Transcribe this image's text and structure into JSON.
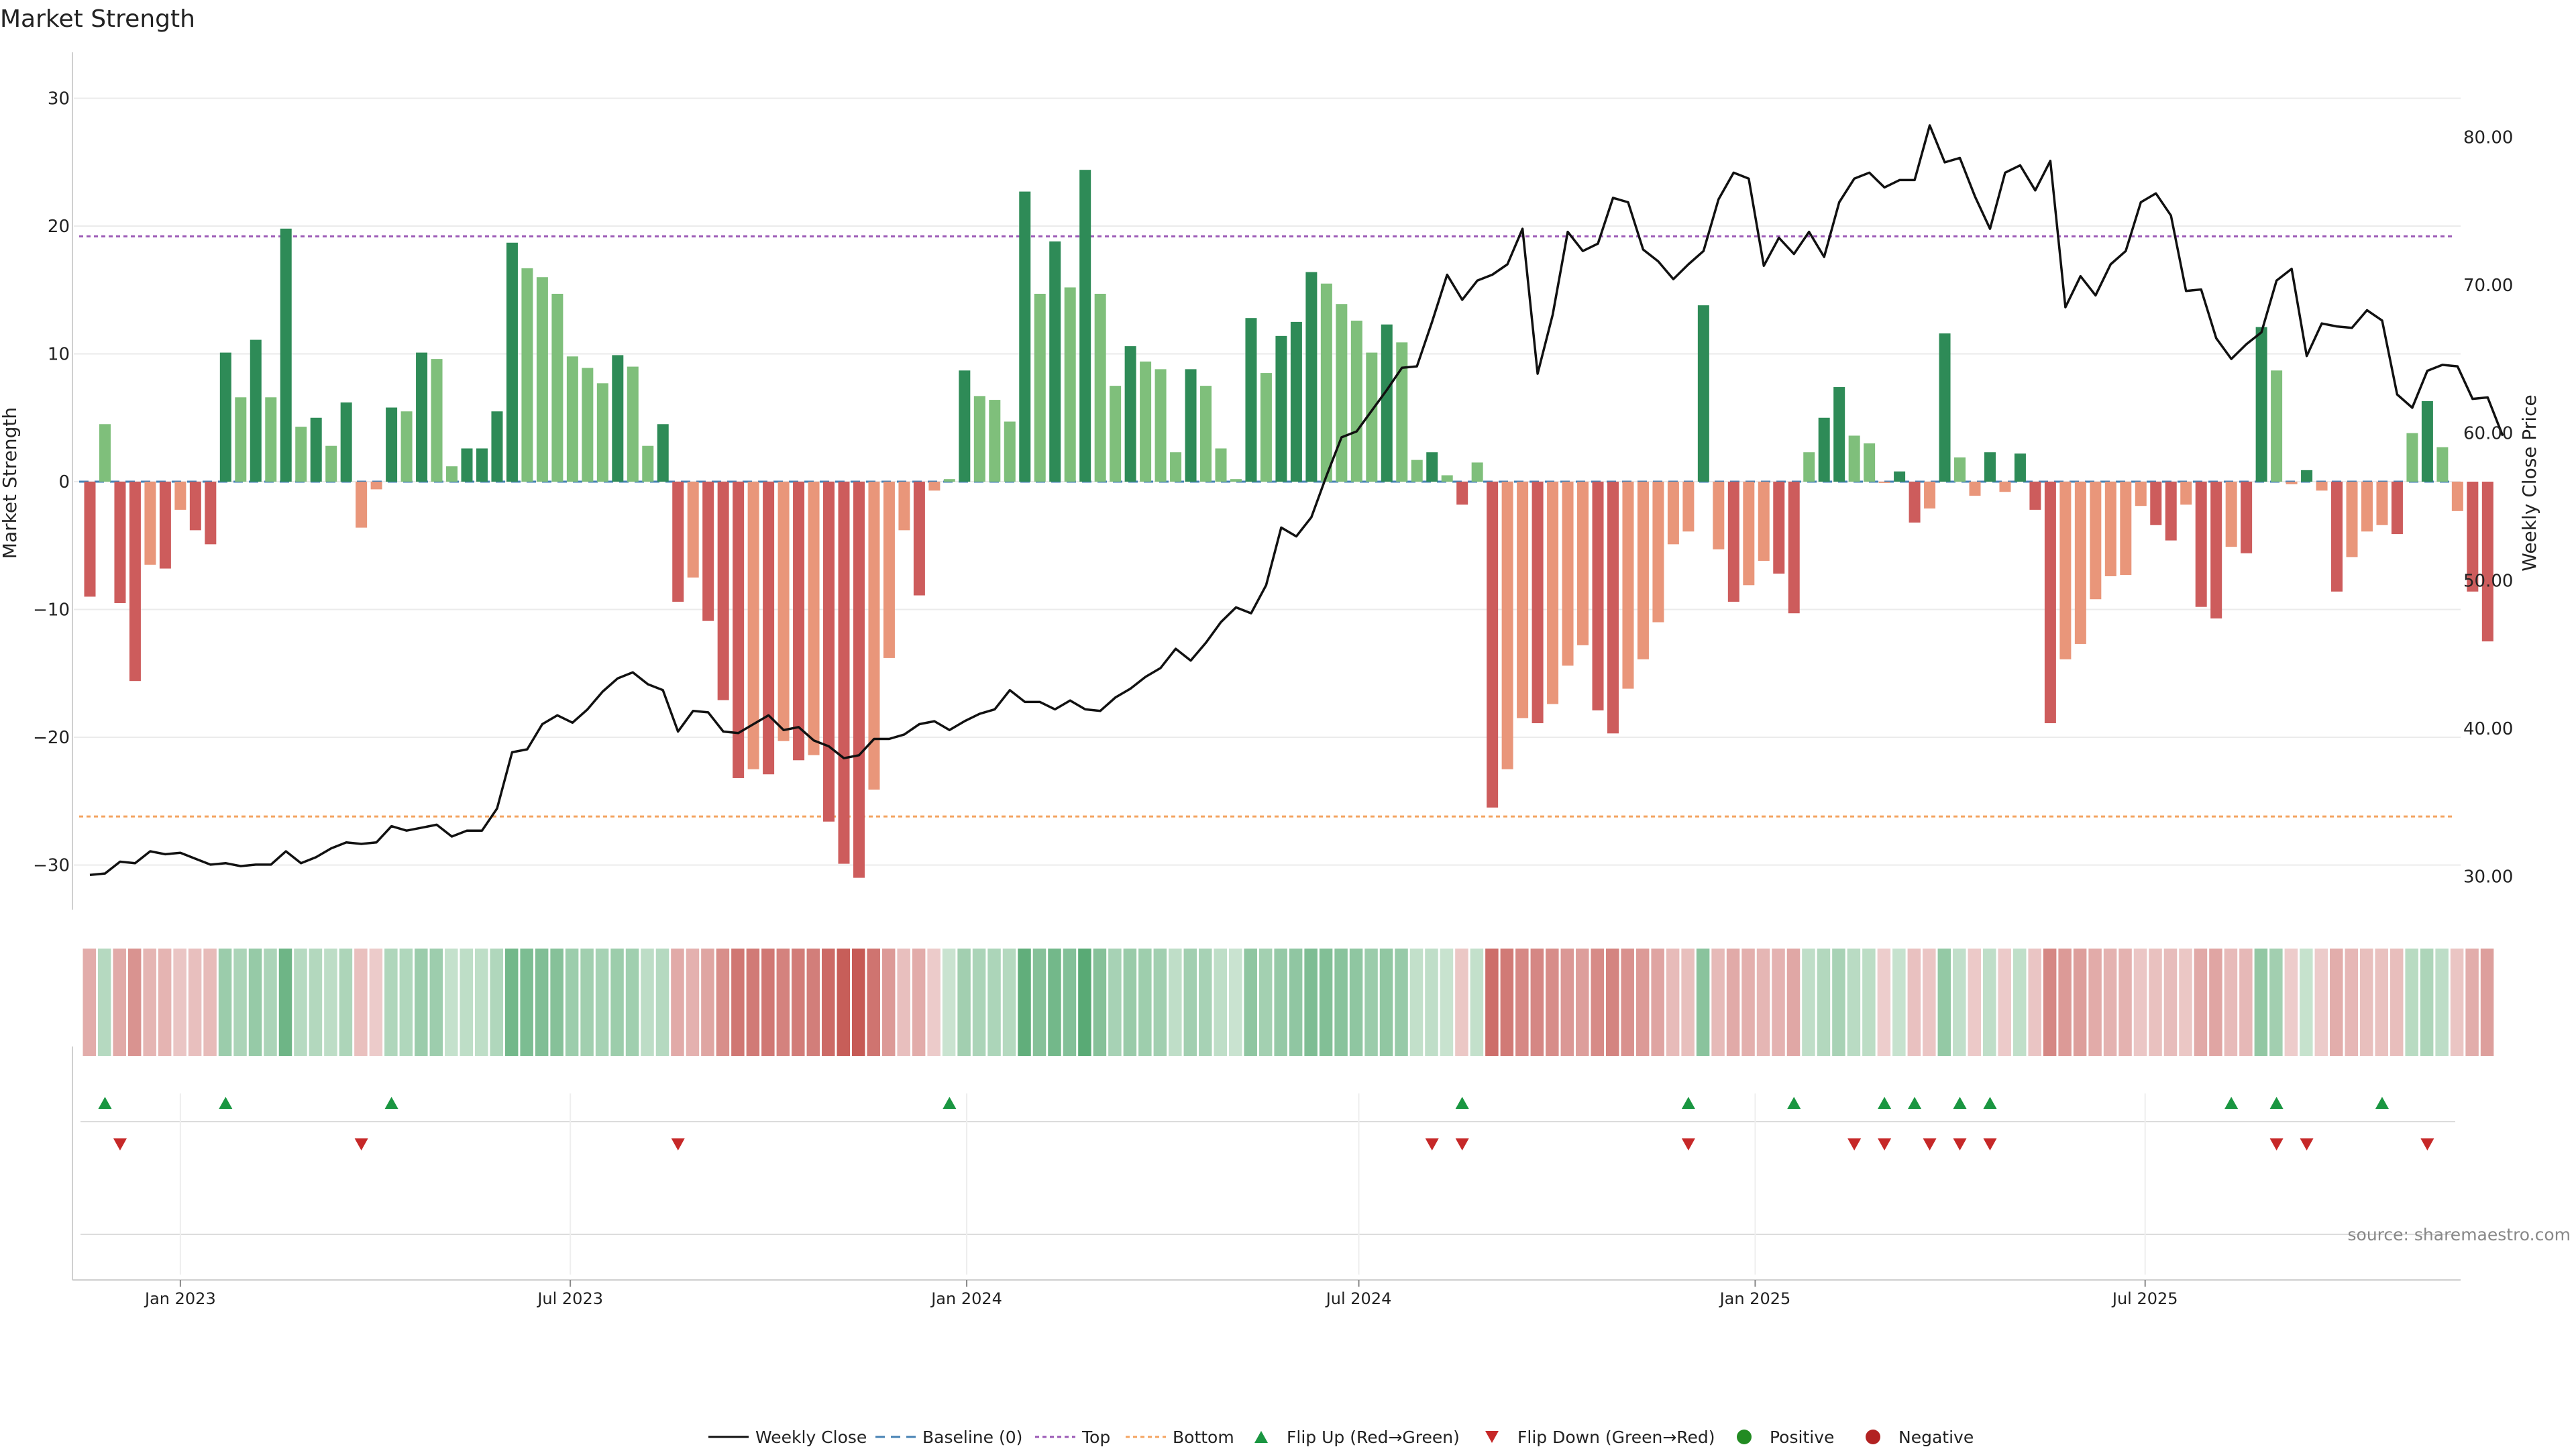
{
  "title": "Market Strength",
  "source": "source: sharemaestro.com",
  "chart_data": {
    "type": "bar",
    "x_start": "2022-11-20",
    "x_step_days": 7,
    "y_left": {
      "label": "Market Strength",
      "ylim": [
        -33,
        34
      ],
      "ticks": [
        {
          "v": 30,
          "t": "30"
        },
        {
          "v": 20,
          "t": "20"
        },
        {
          "v": 10,
          "t": "10"
        },
        {
          "v": 0,
          "t": "0"
        },
        {
          "v": -10,
          "t": "−10"
        },
        {
          "v": -20,
          "t": "−20"
        },
        {
          "v": -30,
          "t": "−30"
        }
      ]
    },
    "y_right": {
      "label": "Weekly Close Price",
      "ylim": [
        28.4,
        86.5
      ],
      "ticks": [
        {
          "v": 80,
          "t": "80.00"
        },
        {
          "v": 70,
          "t": "70.00"
        },
        {
          "v": 60,
          "t": "60.00"
        },
        {
          "v": 50,
          "t": "50.00"
        },
        {
          "v": 40,
          "t": "40.00"
        },
        {
          "v": 30,
          "t": "30.00"
        }
      ]
    },
    "x_ticks": [
      {
        "date": "2023-01-01",
        "t": "Jan 2023"
      },
      {
        "date": "2023-07-01",
        "t": "Jul 2023"
      },
      {
        "date": "2024-01-01",
        "t": "Jan 2024"
      },
      {
        "date": "2024-07-01",
        "t": "Jul 2024"
      },
      {
        "date": "2025-01-01",
        "t": "Jan 2025"
      },
      {
        "date": "2025-07-01",
        "t": "Jul 2025"
      }
    ],
    "top_line": 19.2,
    "bottom_line": -26.2,
    "strength": [
      -9,
      4.5,
      -9.5,
      -15.6,
      -6.5,
      -6.8,
      -2.2,
      -3.8,
      -4.9,
      10.1,
      6.6,
      11.1,
      6.6,
      19.8,
      4.3,
      5,
      2.8,
      6.2,
      -3.6,
      -0.6,
      5.8,
      5.5,
      10.1,
      9.6,
      1.2,
      2.6,
      2.6,
      5.5,
      18.7,
      16.7,
      16,
      14.7,
      9.8,
      8.9,
      7.7,
      9.9,
      9,
      2.8,
      4.5,
      -9.4,
      -7.5,
      -10.9,
      -17.1,
      -23.2,
      -22.5,
      -22.9,
      -20.3,
      -21.8,
      -21.4,
      -26.6,
      -29.9,
      -31,
      -24.1,
      -13.8,
      -3.8,
      -8.9,
      -0.7,
      0.2,
      8.7,
      6.7,
      6.4,
      4.7,
      22.7,
      14.7,
      18.8,
      15.2,
      24.4,
      14.7,
      7.5,
      10.6,
      9.4,
      8.8,
      2.3,
      8.8,
      7.5,
      2.6,
      0.2,
      12.8,
      8.5,
      11.4,
      12.5,
      16.4,
      15.5,
      13.9,
      12.6,
      10.1,
      12.3,
      10.9,
      1.7,
      2.3,
      0.5,
      -1.8,
      1.5,
      -25.5,
      -22.5,
      -18.5,
      -18.9,
      -17.4,
      -14.4,
      -12.8,
      -17.9,
      -19.7,
      -16.2,
      -13.9,
      -11.0,
      -4.9,
      -3.9,
      13.8,
      -5.3,
      -9.4,
      -8.1,
      -6.2,
      -7.2,
      -10.3,
      2.3,
      5,
      7.4,
      3.6,
      3,
      -0.1,
      0.8,
      -3.2,
      -2.1,
      11.6,
      1.9,
      -1.1,
      2.3,
      -0.8,
      2.2,
      -2.2,
      -18.9,
      -13.9,
      -12.7,
      -9.2,
      -7.4,
      -7.3,
      -1.9,
      -3.4,
      -4.6,
      -1.8,
      -9.8,
      -10.7,
      -5.1,
      -5.6,
      12.1,
      8.7,
      -0.2,
      0.9,
      -0.7,
      -8.6,
      -5.9,
      -3.9,
      -3.4,
      -4.1,
      3.8,
      6.3,
      2.7,
      -2.3,
      -8.6,
      -12.5
    ],
    "price": [
      30.1,
      30.2,
      31,
      30.9,
      31.7,
      31.5,
      31.6,
      31.2,
      30.8,
      30.9,
      30.7,
      30.8,
      30.8,
      31.7,
      30.9,
      31.3,
      31.9,
      32.3,
      32.2,
      32.3,
      33.4,
      33.1,
      33.3,
      33.5,
      32.7,
      33.1,
      33.1,
      34.6,
      38.4,
      38.6,
      40.3,
      40.9,
      40.4,
      41.3,
      42.5,
      43.4,
      43.8,
      43,
      42.6,
      39.8,
      41.2,
      41.1,
      39.8,
      39.7,
      40.3,
      40.9,
      39.9,
      40.1,
      39.2,
      38.8,
      38,
      38.2,
      39.3,
      39.3,
      39.6,
      40.3,
      40.5,
      39.9,
      40.5,
      41,
      41.3,
      42.6,
      41.8,
      41.8,
      41.3,
      41.9,
      41.3,
      41.2,
      42.1,
      42.7,
      43.5,
      44.1,
      45.4,
      44.6,
      45.8,
      47.2,
      48.2,
      47.8,
      49.7,
      53.6,
      53,
      54.3,
      57.1,
      59.7,
      60.1,
      61.5,
      62.9,
      64.4,
      64.5,
      67.5,
      70.7,
      69,
      70.3,
      70.7,
      71.4,
      73.8,
      64,
      68,
      73.6,
      72.3,
      72.8,
      75.9,
      75.6,
      72.4,
      71.6,
      70.4,
      71.4,
      72.3,
      75.8,
      77.6,
      77.2,
      71.3,
      73.2,
      72.1,
      73.6,
      71.9,
      75.6,
      77.2,
      77.6,
      76.6,
      77.1,
      77.1,
      80.8,
      78.3,
      78.6,
      76,
      73.8,
      77.6,
      78.1,
      76.4,
      78.4,
      68.5,
      70.6,
      69.3,
      71.4,
      72.3,
      75.6,
      76.2,
      74.7,
      69.6,
      69.7,
      66.4,
      65,
      66,
      66.8,
      70.3,
      71.1,
      65.2,
      67.4,
      67.2,
      67.1,
      68.3,
      67.6,
      62.6,
      61.7,
      64.2,
      64.6,
      64.5,
      62.3,
      62.4,
      59.8
    ],
    "flips_up": [
      1,
      9,
      20,
      57,
      91,
      106,
      113,
      119,
      121,
      124,
      126,
      142,
      145,
      152
    ],
    "flips_down": [
      2,
      18,
      39,
      89,
      91,
      106,
      117,
      119,
      122,
      124,
      126,
      145,
      147,
      155
    ],
    "series": [
      {
        "name": "Weekly Close"
      },
      {
        "name": "Baseline (0)"
      },
      {
        "name": "Top"
      },
      {
        "name": "Bottom"
      },
      {
        "name": "Flip Up (Red→Green)"
      },
      {
        "name": "Flip Down (Green→Red)"
      },
      {
        "name": "Positive"
      },
      {
        "name": "Negative"
      }
    ],
    "legend_placement": "bottom-center"
  },
  "colors": {
    "pos_strong": "#2e8b57",
    "pos_light": "#7fbf7b",
    "neg_strong": "#cd5c5c",
    "neg_light": "#e9967a",
    "price_line": "#111111",
    "baseline": "#4682b4",
    "top": "#9b59b6",
    "bottom": "#f4a460",
    "flip_up": "#1a9641",
    "flip_down": "#c62828",
    "positive_dot": "#228b22",
    "negative_dot": "#b22222"
  }
}
